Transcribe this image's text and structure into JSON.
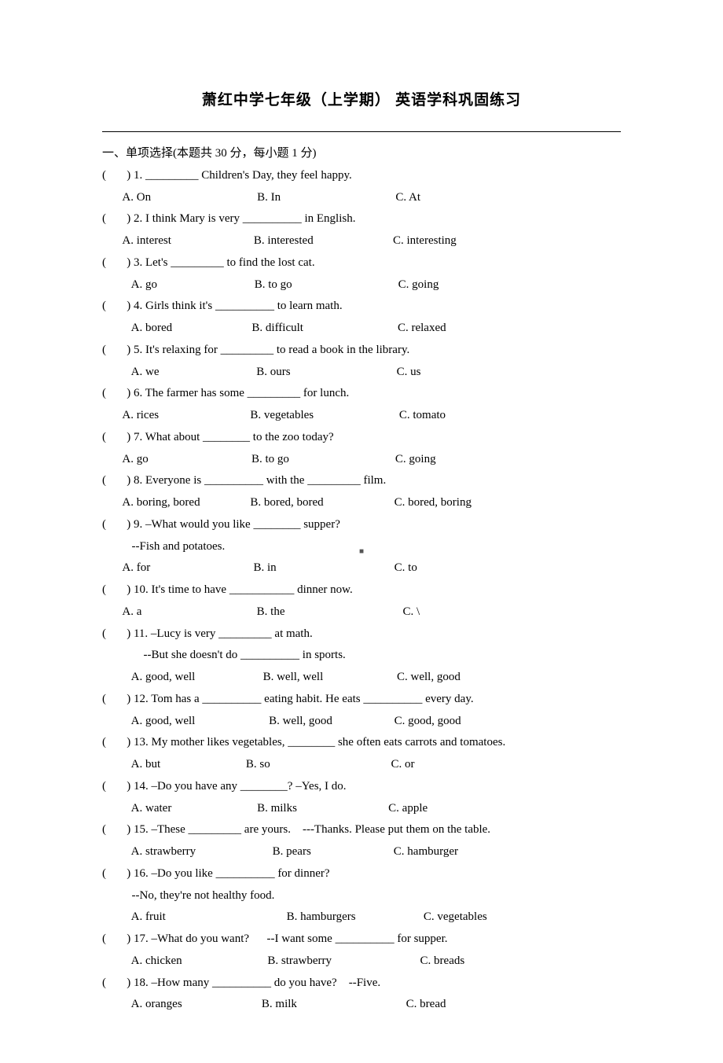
{
  "title": "萧红中学七年级（上学期）   英语学科巩固练习",
  "section": "一、单项选择(本题共 30 分，每小题 1 分)",
  "centerMark": "■",
  "questions": [
    {
      "n": "1",
      "stem": "_________ Children's Day, they feel happy.",
      "opts": "       A. On                                    B. In                                       C. At"
    },
    {
      "n": "2",
      "stem": "I think Mary is very __________ in English.",
      "opts": "       A. interest                            B. interested                           C. interesting"
    },
    {
      "n": "3",
      "stem": "Let's _________ to find the lost cat.",
      "opts": "          A. go                                 B. to go                                    C. going"
    },
    {
      "n": "4",
      "stem": "Girls think it's __________ to learn math.",
      "opts": "          A. bored                           B. difficult                                C. relaxed"
    },
    {
      "n": "5",
      "stem": "It's relaxing for _________ to read a book in the library.",
      "opts": "          A. we                                 B. ours                                    C. us"
    },
    {
      "n": "6",
      "stem": "The farmer has some _________ for lunch.",
      "opts": "       A. rices                               B. vegetables                             C. tomato"
    },
    {
      "n": "7",
      "stem": "What about ________ to the zoo today?",
      "opts": "       A. go                                   B. to go                                    C. going"
    },
    {
      "n": "8",
      "stem": "Everyone is __________ with the _________ film.",
      "opts": "       A. boring, bored                 B. bored, bored                        C. bored, boring"
    },
    {
      "n": "9",
      "stem": "–What would you like ________ supper?",
      "sub": "          --Fish and potatoes.",
      "opts": "       A. for                                   B. in                                        C. to"
    },
    {
      "n": "10",
      "stem": "It's time to have ___________ dinner now.",
      "opts": "       A. a                                       B. the                                        C. \\"
    },
    {
      "n": "11",
      "stem": "–Lucy is very _________ at math.",
      "sub": "              --But she doesn't do __________ in sports.",
      "opts": "          A. good, well                       B. well, well                         C. well, good"
    },
    {
      "n": "12",
      "stem": "Tom has a __________ eating habit. He eats __________ every day.",
      "opts": "          A. good, well                         B. well, good                     C. good, good"
    },
    {
      "n": "13",
      "stem": "My mother likes vegetables, ________ she often eats carrots and tomatoes.",
      "opts": "          A. but                             B. so                                         C. or"
    },
    {
      "n": "14",
      "stem": "–Do you have any ________? –Yes, I do.",
      "opts": "          A. water                             B. milks                               C. apple"
    },
    {
      "n": "15",
      "stem": "–These _________ are yours.    ---Thanks. Please put them on the table.",
      "opts": "          A. strawberry                          B. pears                            C. hamburger"
    },
    {
      "n": "16",
      "stem": "–Do you like __________ for dinner?",
      "sub": "          --No, they're not healthy food.",
      "opts": "          A. fruit                                         B. hamburgers                       C. vegetables"
    },
    {
      "n": "17",
      "stem": "–What do you want?      --I want some __________ for supper.",
      "opts": "          A. chicken                             B. strawberry                              C. breads"
    },
    {
      "n": "18",
      "stem": "–How many __________ do you have?    --Five.",
      "opts": "          A. oranges                           B. milk                                     C. bread"
    }
  ]
}
